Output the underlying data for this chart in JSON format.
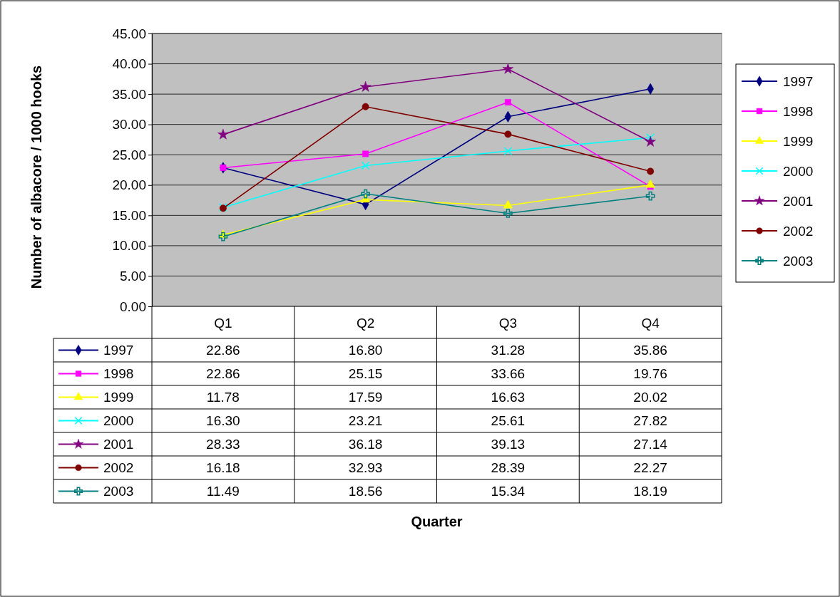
{
  "chart_data": {
    "type": "line",
    "annotations": [
      "Quarter"
    ],
    "ylabel": "Number of albacore / 1000 hooks",
    "categories": [
      "Q1",
      "Q2",
      "Q3",
      "Q4"
    ],
    "ylim": [
      0,
      45
    ],
    "yticks": [
      {
        "value": 0,
        "label": "0.00"
      },
      {
        "value": 5,
        "label": "5.00"
      },
      {
        "value": 10,
        "label": "10.00"
      },
      {
        "value": 15,
        "label": "15.00"
      },
      {
        "value": 20,
        "label": "20.00"
      },
      {
        "value": 25,
        "label": "25.00"
      },
      {
        "value": 30,
        "label": "30.00"
      },
      {
        "value": 35,
        "label": "35.00"
      },
      {
        "value": 40,
        "label": "40.00"
      },
      {
        "value": 45,
        "label": "45.00"
      }
    ],
    "grid": "y",
    "legend": "right",
    "line_style": "solid",
    "series": [
      {
        "name": "1997",
        "color": "#000080",
        "marker": "diamond",
        "values": [
          22.86,
          16.8,
          31.28,
          35.86
        ],
        "value_labels": [
          "22.86",
          "16.80",
          "31.28",
          "35.86"
        ]
      },
      {
        "name": "1998",
        "color": "#ff00ff",
        "marker": "square",
        "values": [
          22.86,
          25.15,
          33.66,
          19.76
        ],
        "value_labels": [
          "22.86",
          "25.15",
          "33.66",
          "19.76"
        ]
      },
      {
        "name": "1999",
        "color": "#ffff00",
        "marker": "triangle",
        "values": [
          11.78,
          17.59,
          16.63,
          20.02
        ],
        "value_labels": [
          "11.78",
          "17.59",
          "16.63",
          "20.02"
        ]
      },
      {
        "name": "2000",
        "color": "#00ffff",
        "marker": "x",
        "values": [
          16.3,
          23.21,
          25.61,
          27.82
        ],
        "value_labels": [
          "16.30",
          "23.21",
          "25.61",
          "27.82"
        ]
      },
      {
        "name": "2001",
        "color": "#800080",
        "marker": "star",
        "values": [
          28.33,
          36.18,
          39.13,
          27.14
        ],
        "value_labels": [
          "28.33",
          "36.18",
          "39.13",
          "27.14"
        ]
      },
      {
        "name": "2002",
        "color": "#800000",
        "marker": "circle",
        "values": [
          16.18,
          32.93,
          28.39,
          22.27
        ],
        "value_labels": [
          "16.18",
          "32.93",
          "28.39",
          "22.27"
        ]
      },
      {
        "name": "2003",
        "color": "#008080",
        "marker": "cross",
        "values": [
          11.49,
          18.56,
          15.34,
          18.19
        ],
        "value_labels": [
          "11.49",
          "18.56",
          "15.34",
          "18.19"
        ]
      }
    ]
  }
}
